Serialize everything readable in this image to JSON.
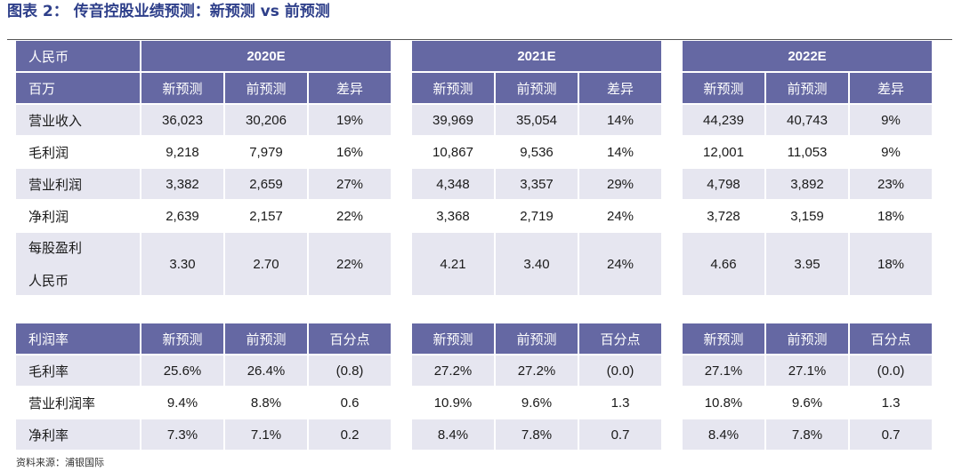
{
  "title": {
    "prefix": "图表 2：",
    "text": "传音控股业绩预测：新预测 vs 前预测"
  },
  "forecast_table": {
    "header_row1_label": "人民币",
    "header_row2_label": "百万",
    "years": [
      "2020E",
      "2021E",
      "2022E"
    ],
    "subheaders": [
      "新预测",
      "前预测",
      "差异"
    ],
    "rows": [
      {
        "label": "营业收入",
        "values": [
          [
            "36,023",
            "30,206",
            "19%"
          ],
          [
            "39,969",
            "35,054",
            "14%"
          ],
          [
            "44,239",
            "40,743",
            "9%"
          ]
        ]
      },
      {
        "label": "毛利润",
        "values": [
          [
            "9,218",
            "7,979",
            "16%"
          ],
          [
            "10,867",
            "9,536",
            "14%"
          ],
          [
            "12,001",
            "11,053",
            "9%"
          ]
        ]
      },
      {
        "label": "营业利润",
        "values": [
          [
            "3,382",
            "2,659",
            "27%"
          ],
          [
            "4,348",
            "3,357",
            "29%"
          ],
          [
            "4,798",
            "3,892",
            "23%"
          ]
        ]
      },
      {
        "label": "净利润",
        "values": [
          [
            "2,639",
            "2,157",
            "22%"
          ],
          [
            "3,368",
            "2,719",
            "24%"
          ],
          [
            "3,728",
            "3,159",
            "18%"
          ]
        ]
      },
      {
        "label_line1": "每股盈利",
        "label_line2": "人民币",
        "values": [
          [
            "3.30",
            "2.70",
            "22%"
          ],
          [
            "4.21",
            "3.40",
            "24%"
          ],
          [
            "4.66",
            "3.95",
            "18%"
          ]
        ]
      }
    ]
  },
  "margin_table": {
    "header_label": "利润率",
    "subheaders": [
      "新预测",
      "前预测",
      "百分点"
    ],
    "rows": [
      {
        "label": "毛利率",
        "values": [
          [
            "25.6%",
            "26.4%",
            "(0.8)"
          ],
          [
            "27.2%",
            "27.2%",
            "(0.0)"
          ],
          [
            "27.1%",
            "27.1%",
            "(0.0)"
          ]
        ]
      },
      {
        "label": "营业利润率",
        "values": [
          [
            "9.4%",
            "8.8%",
            "0.6"
          ],
          [
            "10.9%",
            "9.6%",
            "1.3"
          ],
          [
            "10.8%",
            "9.6%",
            "1.3"
          ]
        ]
      },
      {
        "label": "净利率",
        "values": [
          [
            "7.3%",
            "7.1%",
            "0.2"
          ],
          [
            "8.4%",
            "7.8%",
            "0.7"
          ],
          [
            "8.4%",
            "7.8%",
            "0.7"
          ]
        ]
      }
    ]
  },
  "source": "资料来源：浦银国际",
  "colors": {
    "header_bg": "#6568a3",
    "row_bg": "#e6e6f0",
    "title": "#2e3f8a"
  }
}
